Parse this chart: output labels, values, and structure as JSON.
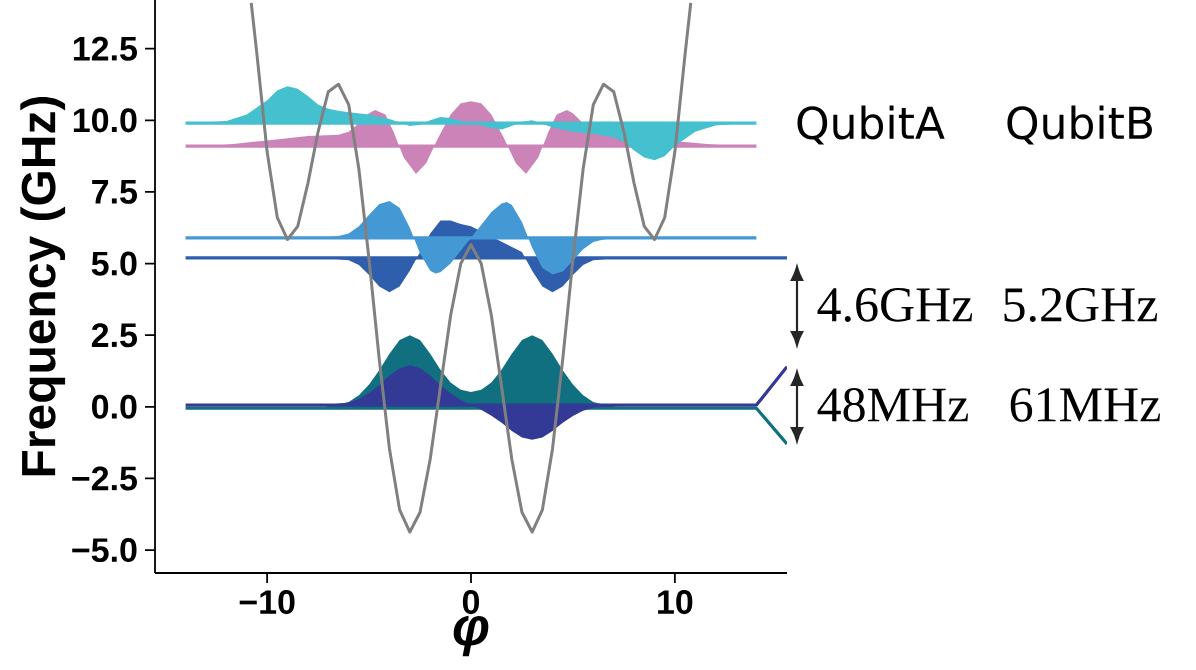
{
  "chart_data": {
    "type": "area",
    "xlabel": "φ",
    "ylabel": "Frequency (GHz)",
    "xlim": [
      -15.5,
      15.5
    ],
    "ylim": [
      -5.8,
      14.2
    ],
    "xticks": [
      {
        "value": -10,
        "label": "−10"
      },
      0,
      10
    ],
    "yticks": [
      {
        "value": -5,
        "label": "−5.0"
      },
      {
        "value": -2.5,
        "label": "−2.5"
      },
      {
        "value": 0,
        "label": "0.0"
      },
      2.5,
      {
        "value": 5,
        "label": "5.0"
      },
      7.5,
      {
        "value": 10,
        "label": "10.0"
      },
      12.5
    ],
    "annotations": [
      "QubitA",
      "QubitB",
      "4.6GHz",
      "5.2GHz",
      "48MHz",
      "61MHz"
    ],
    "series": [
      {
        "color": "#cc83b7",
        "x": [
          -13,
          -12,
          -10,
          -8,
          -6.5,
          -6,
          -5.5,
          -5,
          -4.7,
          -4.2,
          -3.8,
          -3.3,
          -2.7,
          -2.2,
          -1.6,
          -1,
          -0.5,
          0,
          0.5,
          1,
          1.6,
          2.2,
          2.7,
          3.3,
          3.8,
          4.2,
          4.7,
          5,
          5.5,
          6,
          6.5,
          8,
          10,
          12,
          13
        ],
        "values": [
          9.1,
          9.15,
          9.3,
          9.45,
          9.5,
          9.6,
          9.9,
          10.25,
          10.36,
          10.2,
          9.6,
          8.7,
          8.13,
          8.5,
          9.4,
          10.2,
          10.6,
          10.67,
          10.6,
          10.2,
          9.4,
          8.5,
          8.13,
          8.7,
          9.6,
          10.2,
          10.36,
          10.25,
          9.9,
          9.6,
          9.5,
          null,
          null,
          9.15,
          9.1
        ]
      },
      {
        "type": "line",
        "color": "#cc83b7",
        "x": [
          -14,
          14
        ],
        "values": [
          9.1,
          9.1
        ]
      },
      {
        "color": "#45c0cf",
        "x": [
          -13,
          -12,
          -11,
          -10,
          -9.5,
          -9,
          -8.5,
          -8,
          -7.5,
          -7,
          -6.5,
          -6,
          -5,
          -4,
          -3.5,
          -3,
          -2.5,
          -2,
          -1.5,
          -1,
          -0.5,
          0,
          0.5,
          1,
          1.5,
          2,
          2.5,
          3,
          3.5,
          4,
          5,
          6,
          6.5,
          7,
          7.5,
          8,
          8.5,
          9,
          9.5,
          10,
          11,
          12,
          13
        ],
        "values": [
          9.92,
          9.98,
          10.2,
          10.7,
          11.05,
          11.19,
          11.1,
          10.85,
          10.55,
          10.4,
          10.33,
          10.28,
          10.2,
          10.05,
          9.92,
          9.8,
          9.85,
          10.0,
          10.12,
          10.08,
          9.98,
          9.9,
          9.82,
          9.72,
          9.68,
          9.8,
          9.95,
          10.0,
          9.88,
          9.75,
          9.6,
          9.52,
          9.47,
          9.4,
          9.25,
          8.95,
          8.7,
          8.61,
          8.75,
          9.1,
          9.6,
          9.82,
          9.88
        ]
      },
      {
        "type": "line",
        "color": "#45c0cf",
        "x": [
          -14,
          14
        ],
        "values": [
          9.9,
          9.9
        ]
      },
      {
        "color": "#2e5eac",
        "x": [
          -7.5,
          -7,
          -6,
          -5.5,
          -5,
          -4.5,
          -4,
          -3.5,
          -3,
          -2.5,
          -2,
          -1.5,
          -1,
          -0.5,
          0,
          0.5,
          1,
          1.5,
          2,
          2.5,
          3,
          3.5,
          4,
          4.5,
          5,
          5.5,
          6,
          7,
          7.5
        ],
        "values": [
          5.2,
          5.19,
          5.12,
          4.95,
          4.6,
          4.2,
          4.0,
          4.2,
          4.75,
          5.4,
          6.05,
          6.5,
          6.5,
          6.38,
          6.3,
          null,
          null,
          null,
          null,
          5.4,
          4.75,
          4.2,
          4.0,
          4.2,
          4.6,
          4.95,
          5.12,
          5.19,
          5.2
        ]
      },
      {
        "type": "line",
        "color": "#2e5eac",
        "x": [
          -14,
          15.5
        ],
        "values": [
          5.2,
          5.2
        ]
      },
      {
        "color": "#4499d4",
        "x": [
          -7.5,
          -7,
          -6.5,
          -6,
          -5.5,
          -5,
          -4.5,
          -4,
          -3.5,
          -3,
          -2.5,
          -2,
          -1.75,
          -1.5,
          -1,
          -0.5,
          0,
          0.5,
          1,
          1.5,
          1.75,
          2,
          2.5,
          3,
          3.5,
          4,
          4.5,
          5,
          5.5,
          6,
          6.5,
          7,
          7.5
        ],
        "values": [
          5.9,
          5.92,
          5.96,
          6.05,
          6.3,
          6.7,
          7.08,
          7.18,
          6.95,
          6.25,
          5.35,
          4.75,
          4.65,
          4.7,
          5.0,
          5.45,
          5.9,
          6.35,
          6.8,
          7.1,
          7.15,
          7.05,
          6.45,
          5.55,
          4.85,
          4.62,
          4.72,
          5.1,
          5.5,
          5.75,
          5.84,
          5.88,
          5.9
        ]
      },
      {
        "type": "line",
        "color": "#4499d4",
        "x": [
          -14,
          14
        ],
        "values": [
          5.9,
          5.9
        ]
      },
      {
        "color": "#117080",
        "x": [
          -7.5,
          -7,
          -6.5,
          -6,
          -5.5,
          -5,
          -4.5,
          -4,
          -3.5,
          -3,
          -2.5,
          -2,
          -1.5,
          -1,
          -0.5,
          0,
          0.5,
          1,
          1.5,
          2,
          2.5,
          3,
          3.5,
          4,
          4.5,
          5,
          5.5,
          6,
          6.5,
          7,
          7.5
        ],
        "values": [
          -0.05,
          0.02,
          0.07,
          0.17,
          0.4,
          0.78,
          1.28,
          1.85,
          2.33,
          2.5,
          2.33,
          1.85,
          1.29,
          0.85,
          0.6,
          0.52,
          0.6,
          0.85,
          1.29,
          1.85,
          2.33,
          2.5,
          2.33,
          1.85,
          1.28,
          0.78,
          0.4,
          0.17,
          0.07,
          0.02,
          -0.05
        ]
      },
      {
        "type": "line",
        "color": "#117080",
        "x": [
          -14,
          14,
          15.5
        ],
        "values": [
          -0.05,
          -0.05,
          -1.3
        ]
      },
      {
        "color": "#333a96",
        "x": [
          -7.5,
          -7,
          -6,
          -5.5,
          -5,
          -4.5,
          -4,
          -3.5,
          -3,
          -2.5,
          -2,
          -1.5,
          -1,
          -0.5,
          0,
          0.5,
          1,
          1.5,
          2,
          2.5,
          3,
          3.5,
          4,
          4.5,
          5,
          5.5,
          6,
          7,
          7.5
        ],
        "values": [
          0.06,
          0.07,
          0.15,
          0.27,
          0.48,
          0.76,
          1.09,
          1.35,
          1.45,
          1.35,
          1.09,
          0.76,
          0.47,
          0.24,
          0.06,
          -0.1,
          -0.31,
          -0.56,
          -0.84,
          -1.07,
          -1.15,
          -1.07,
          -0.84,
          -0.56,
          -0.32,
          -0.14,
          -0.03,
          0.04,
          0.06
        ]
      },
      {
        "type": "line",
        "color": "#333a96",
        "x": [
          -14,
          14,
          15.5
        ],
        "values": [
          0.06,
          0.06,
          1.4
        ]
      },
      {
        "type": "line",
        "color": "#808080",
        "x": [
          -10.78,
          -10.5,
          -10,
          -9.5,
          -9,
          -8.5,
          -8,
          -7.5,
          -7,
          -6.5,
          -6,
          -5.5,
          -5,
          -4.5,
          -4,
          -3.5,
          -3,
          -2.5,
          -2,
          -1.5,
          -1,
          -0.5,
          0,
          0.5,
          1,
          1.5,
          2,
          2.5,
          3,
          3.5,
          4,
          4.5,
          5,
          5.5,
          6,
          6.5,
          7,
          7.5,
          8,
          8.5,
          9,
          9.5,
          10,
          10.5,
          10.78
        ],
        "values": [
          14.1,
          12.3,
          8.9,
          6.6,
          5.84,
          6.3,
          7.8,
          9.6,
          11.0,
          11.26,
          10.55,
          8.3,
          5.14,
          1.66,
          -1.46,
          -3.6,
          -4.37,
          -3.68,
          -1.82,
          0.7,
          3.19,
          5.0,
          5.66,
          5.0,
          3.19,
          0.7,
          -1.82,
          -3.68,
          -4.37,
          -3.6,
          -1.46,
          1.66,
          5.14,
          8.3,
          10.55,
          11.26,
          11.0,
          9.6,
          7.8,
          6.3,
          5.84,
          6.6,
          8.9,
          12.3,
          14.1
        ]
      }
    ]
  }
}
